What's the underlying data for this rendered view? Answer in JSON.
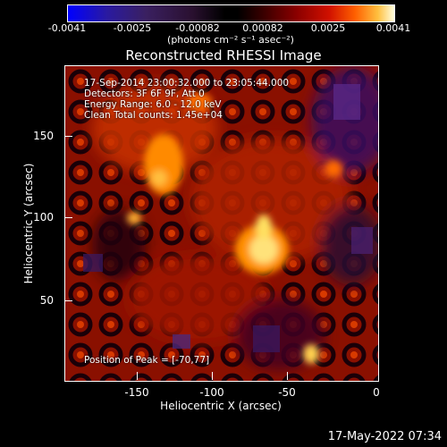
{
  "colorbar": {
    "ticks": [
      "-0.0041",
      "-0.0025",
      "-0.00082",
      "0.00082",
      "0.0025",
      "0.0041"
    ],
    "units": "(photons cm⁻² s⁻¹ asec⁻²)"
  },
  "title": "Reconstructed RHESSI Image",
  "annotations": {
    "time_range": "17-Sep-2014 23:00:32.000 to 23:05:44.000",
    "detectors": "Detectors: 3F 6F 9F, Att 0",
    "energy_range": "Energy Range: 6.0 - 12.0 keV",
    "clean_counts": "Clean     Total counts: 1.45e+04",
    "peak_position": "Position of Peak = [-70,77]"
  },
  "axes": {
    "xlabel": "Heliocentric X (arcsec)",
    "ylabel": "Heliocentric Y (arcsec)",
    "xticks": [
      "-150",
      "-100",
      "-50",
      "0"
    ],
    "yticks": [
      "150",
      "100",
      "50"
    ]
  },
  "datestamp": "17-May-2022 07:34"
}
